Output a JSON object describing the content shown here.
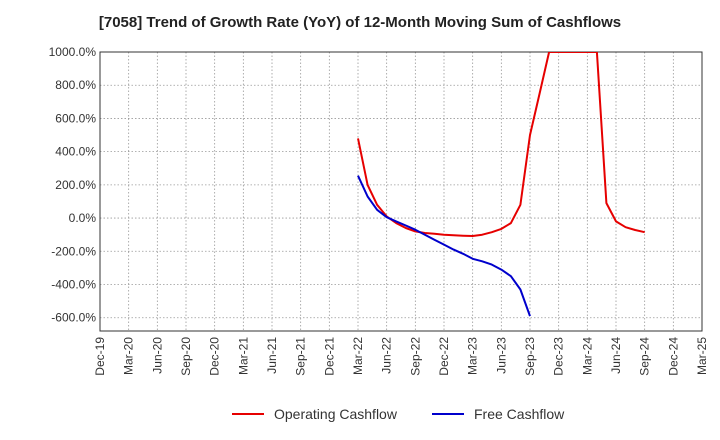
{
  "chart_data": {
    "type": "line",
    "title": "[7058]  Trend of Growth Rate (YoY) of 12-Month Moving Sum of Cashflows",
    "xlabel": "",
    "ylabel": "",
    "x_ticks": [
      "Dec-19",
      "Mar-20",
      "Jun-20",
      "Sep-20",
      "Dec-20",
      "Mar-21",
      "Jun-21",
      "Sep-21",
      "Dec-21",
      "Mar-22",
      "Jun-22",
      "Sep-22",
      "Dec-22",
      "Mar-23",
      "Jun-23",
      "Sep-23",
      "Dec-23",
      "Mar-24",
      "Jun-24",
      "Sep-24",
      "Dec-24",
      "Mar-25"
    ],
    "y_ticks": [
      "1000.0%",
      "800.0%",
      "600.0%",
      "400.0%",
      "200.0%",
      "0.0%",
      "-200.0%",
      "-400.0%",
      "-600.0%"
    ],
    "ylim": [
      -680,
      1000
    ],
    "grid": true,
    "legend_position": "bottom",
    "series": [
      {
        "name": "Operating Cashflow",
        "color": "#e60000",
        "points": [
          [
            "Mar-22",
            480
          ],
          [
            "Apr-22",
            200
          ],
          [
            "May-22",
            80
          ],
          [
            "Jun-22",
            10
          ],
          [
            "Jul-22",
            -30
          ],
          [
            "Aug-22",
            -60
          ],
          [
            "Sep-22",
            -80
          ],
          [
            "Oct-22",
            -90
          ],
          [
            "Nov-22",
            -95
          ],
          [
            "Dec-22",
            -100
          ],
          [
            "Jan-23",
            -103
          ],
          [
            "Feb-23",
            -106
          ],
          [
            "Mar-23",
            -108
          ],
          [
            "Apr-23",
            -100
          ],
          [
            "May-23",
            -85
          ],
          [
            "Jun-23",
            -65
          ],
          [
            "Jul-23",
            -30
          ],
          [
            "Aug-23",
            80
          ],
          [
            "Sep-23",
            500
          ],
          [
            "Oct-23",
            750
          ],
          [
            "Nov-23",
            1000
          ],
          [
            "Apr-24",
            1000
          ],
          [
            "May-24",
            90
          ],
          [
            "Jun-24",
            -20
          ],
          [
            "Jul-24",
            -55
          ],
          [
            "Aug-24",
            -72
          ],
          [
            "Sep-24",
            -85
          ]
        ]
      },
      {
        "name": "Free Cashflow",
        "color": "#0000cc",
        "points": [
          [
            "Mar-22",
            255
          ],
          [
            "Apr-22",
            130
          ],
          [
            "May-22",
            50
          ],
          [
            "Jun-22",
            5
          ],
          [
            "Jul-22",
            -20
          ],
          [
            "Aug-22",
            -45
          ],
          [
            "Sep-22",
            -70
          ],
          [
            "Oct-22",
            -100
          ],
          [
            "Nov-22",
            -130
          ],
          [
            "Dec-22",
            -160
          ],
          [
            "Jan-23",
            -190
          ],
          [
            "Feb-23",
            -215
          ],
          [
            "Mar-23",
            -245
          ],
          [
            "Apr-23",
            -260
          ],
          [
            "May-23",
            -280
          ],
          [
            "Jun-23",
            -310
          ],
          [
            "Jul-23",
            -350
          ],
          [
            "Aug-23",
            -430
          ],
          [
            "Sep-23",
            -590
          ]
        ]
      }
    ]
  }
}
